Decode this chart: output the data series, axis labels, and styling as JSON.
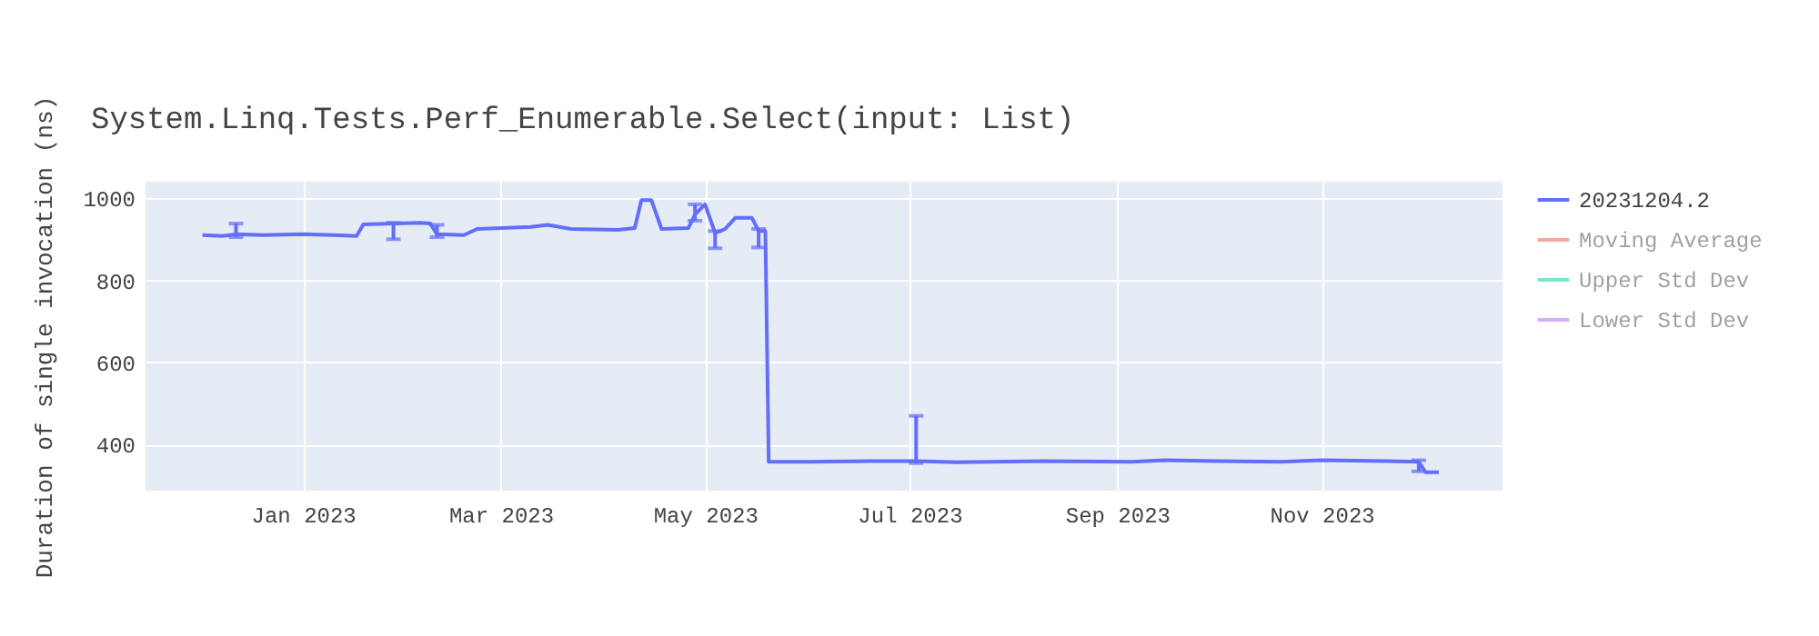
{
  "chart_data": {
    "type": "line",
    "title": "System.Linq.Tests.Perf_Enumerable.Select(input: List)",
    "ylabel": "Duration of single invocation (ns)",
    "x": [
      "2022-12-02",
      "2022-12-08",
      "2022-12-12",
      "2022-12-20",
      "2023-01-01",
      "2023-01-10",
      "2023-01-17",
      "2023-01-19",
      "2023-01-28",
      "2023-02-05",
      "2023-02-08",
      "2023-02-10",
      "2023-02-18",
      "2023-02-22",
      "2023-03-10",
      "2023-03-15",
      "2023-03-22",
      "2023-04-05",
      "2023-04-10",
      "2023-04-12",
      "2023-04-15",
      "2023-04-18",
      "2023-04-26",
      "2023-04-28",
      "2023-05-01",
      "2023-05-04",
      "2023-05-07",
      "2023-05-10",
      "2023-05-15",
      "2023-05-17",
      "2023-05-19",
      "2023-05-20",
      "2023-06-01",
      "2023-06-20",
      "2023-07-03",
      "2023-07-15",
      "2023-08-10",
      "2023-09-05",
      "2023-09-15",
      "2023-10-01",
      "2023-10-20",
      "2023-11-01",
      "2023-11-20",
      "2023-11-30",
      "2023-12-02",
      "2023-12-06"
    ],
    "series": [
      {
        "name": "20231204.2",
        "color": "#636efa",
        "values": [
          910,
          908,
          912,
          910,
          912,
          910,
          908,
          936,
          938,
          940,
          938,
          912,
          910,
          925,
          930,
          935,
          925,
          923,
          927,
          995,
          995,
          925,
          927,
          960,
          985,
          915,
          925,
          952,
          952,
          920,
          920,
          358,
          358,
          360,
          360,
          357,
          360,
          358,
          362,
          360,
          358,
          362,
          360,
          358,
          333,
          333
        ],
        "errors": [
          null,
          null,
          [
            905,
            938
          ],
          null,
          null,
          null,
          null,
          null,
          [
            900,
            940
          ],
          null,
          null,
          [
            905,
            935
          ],
          null,
          null,
          null,
          null,
          null,
          null,
          null,
          null,
          null,
          null,
          null,
          [
            945,
            985
          ],
          null,
          [
            878,
            920
          ],
          null,
          null,
          null,
          [
            880,
            925
          ],
          null,
          null,
          null,
          null,
          [
            355,
            470
          ],
          null,
          null,
          null,
          null,
          null,
          null,
          null,
          null,
          [
            335,
            362
          ],
          null,
          null
        ]
      },
      {
        "name": "Moving Average",
        "color": "#ef553b",
        "values": [
          null,
          null,
          null,
          null,
          null,
          null,
          null,
          null,
          null,
          null,
          null,
          null,
          null,
          null,
          null,
          null,
          null,
          null,
          null,
          null,
          null,
          null,
          null,
          null,
          null,
          null,
          null,
          null,
          null,
          null,
          null,
          null,
          null,
          null,
          null,
          null,
          null,
          null,
          null,
          null,
          null,
          null,
          null,
          null,
          null,
          null
        ]
      },
      {
        "name": "Upper Std Dev",
        "color": "#00cc96",
        "values": [
          null,
          null,
          null,
          null,
          null,
          null,
          null,
          null,
          null,
          null,
          null,
          null,
          null,
          null,
          null,
          null,
          null,
          null,
          null,
          null,
          null,
          null,
          null,
          null,
          null,
          null,
          null,
          null,
          null,
          null,
          null,
          null,
          null,
          null,
          null,
          null,
          null,
          null,
          null,
          null,
          null,
          null,
          null,
          null,
          null,
          null
        ]
      },
      {
        "name": "Lower Std Dev",
        "color": "#ab63fa",
        "values": [
          null,
          null,
          null,
          null,
          null,
          null,
          null,
          null,
          null,
          null,
          null,
          null,
          null,
          null,
          null,
          null,
          null,
          null,
          null,
          null,
          null,
          null,
          null,
          null,
          null,
          null,
          null,
          null,
          null,
          null,
          null,
          null,
          null,
          null,
          null,
          null,
          null,
          null,
          null,
          null,
          null,
          null,
          null,
          null,
          null,
          null
        ]
      }
    ],
    "xlim": [
      "2022-11-15",
      "2023-12-25"
    ],
    "xticks": [
      {
        "value": "2023-01-01",
        "label": "Jan 2023"
      },
      {
        "value": "2023-03-01",
        "label": "Mar 2023"
      },
      {
        "value": "2023-05-01",
        "label": "May 2023"
      },
      {
        "value": "2023-07-01",
        "label": "Jul 2023"
      },
      {
        "value": "2023-09-01",
        "label": "Sep 2023"
      },
      {
        "value": "2023-11-01",
        "label": "Nov 2023"
      }
    ],
    "ylim": [
      288,
      1040
    ],
    "yticks": [
      400,
      600,
      800,
      1000
    ],
    "grid": true,
    "legend": "right",
    "line_style": "solid",
    "marker": "none"
  }
}
